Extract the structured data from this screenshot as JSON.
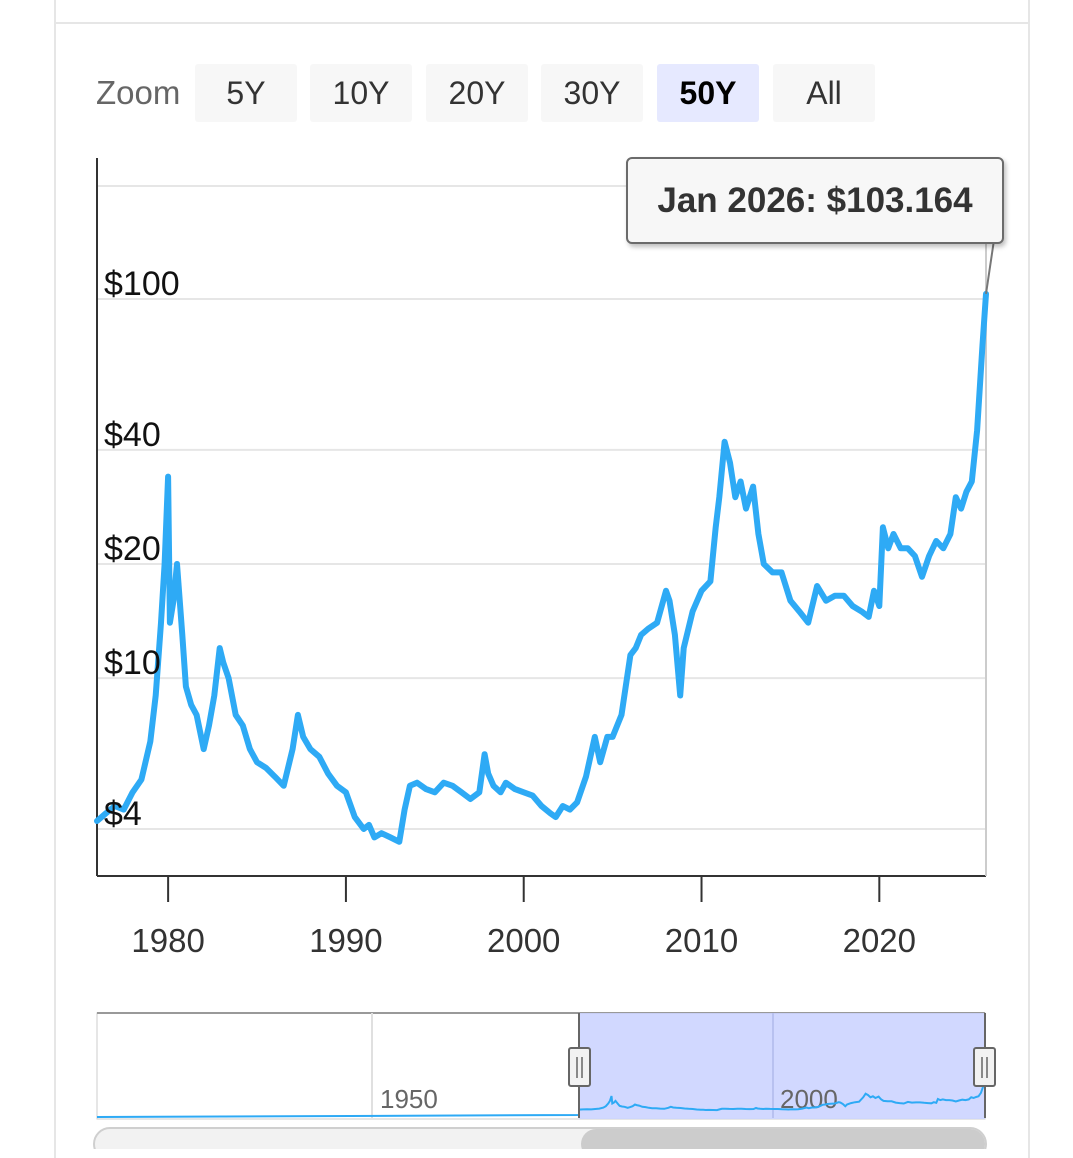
{
  "zoom": {
    "label": "Zoom",
    "buttons": [
      "5Y",
      "10Y",
      "20Y",
      "30Y",
      "50Y",
      "All"
    ],
    "active": "50Y"
  },
  "tooltip": {
    "text": "Jan 2026: $103.164"
  },
  "navigator": {
    "labels": [
      "1950",
      "2000"
    ]
  },
  "colors": {
    "series": "#2eaaf5",
    "selection": "#ccd4ff",
    "active_button": "#e6e9ff"
  },
  "chart_data": {
    "type": "line",
    "y_scale": "log",
    "ylim": [
      3.0,
      160
    ],
    "xlim": [
      1976.0,
      2026.0
    ],
    "y_ticks": [
      4,
      10,
      20,
      40,
      100
    ],
    "y_tick_labels": [
      "$4",
      "$10",
      "$20",
      "$40",
      "$100"
    ],
    "x_ticks": [
      1980,
      1990,
      2000,
      2010,
      2020
    ],
    "x_tick_labels": [
      "1980",
      "1990",
      "2000",
      "2010",
      "2020"
    ],
    "grid": true,
    "series": [
      {
        "x": [
          1976.0,
          1976.5,
          1977.0,
          1977.5,
          1978.0,
          1978.5,
          1979.0,
          1979.3,
          1979.6,
          1979.8,
          1980.0,
          1980.1,
          1980.3,
          1980.5,
          1980.8,
          1981.0,
          1981.3,
          1981.6,
          1982.0,
          1982.3,
          1982.6,
          1982.9,
          1983.1,
          1983.4,
          1983.8,
          1984.2,
          1984.6,
          1985.0,
          1985.5,
          1986.0,
          1986.5,
          1987.0,
          1987.3,
          1987.6,
          1988.0,
          1988.5,
          1989.0,
          1989.5,
          1990.0,
          1990.5,
          1991.0,
          1991.3,
          1991.6,
          1992.0,
          1992.5,
          1993.0,
          1993.3,
          1993.6,
          1994.0,
          1994.5,
          1995.0,
          1995.5,
          1996.0,
          1996.5,
          1997.0,
          1997.5,
          1997.8,
          1998.0,
          1998.3,
          1998.7,
          1999.0,
          1999.5,
          2000.0,
          2000.5,
          2001.0,
          2001.5,
          2001.8,
          2002.2,
          2002.6,
          2003.0,
          2003.5,
          2004.0,
          2004.3,
          2004.7,
          2005.0,
          2005.5,
          2006.0,
          2006.3,
          2006.6,
          2007.0,
          2007.5,
          2008.0,
          2008.2,
          2008.5,
          2008.8,
          2009.0,
          2009.5,
          2010.0,
          2010.5,
          2010.8,
          2011.0,
          2011.3,
          2011.6,
          2011.9,
          2012.2,
          2012.5,
          2012.9,
          2013.2,
          2013.5,
          2014.0,
          2014.5,
          2015.0,
          2015.5,
          2016.0,
          2016.5,
          2017.0,
          2017.5,
          2018.0,
          2018.5,
          2019.0,
          2019.4,
          2019.7,
          2020.0,
          2020.2,
          2020.5,
          2020.8,
          2021.2,
          2021.6,
          2022.0,
          2022.4,
          2022.8,
          2023.2,
          2023.6,
          2024.0,
          2024.3,
          2024.6,
          2024.9,
          2025.2,
          2025.5,
          2025.8,
          2026.0
        ],
        "y": [
          4.2,
          4.4,
          4.6,
          4.5,
          5.0,
          5.4,
          6.8,
          9.0,
          14.0,
          20.0,
          34.0,
          14.0,
          16.0,
          20.0,
          13.0,
          9.5,
          8.5,
          8.0,
          6.5,
          7.5,
          9.0,
          12.0,
          11.0,
          10.0,
          8.0,
          7.5,
          6.5,
          6.0,
          5.8,
          5.5,
          5.2,
          6.5,
          8.0,
          7.0,
          6.5,
          6.2,
          5.6,
          5.2,
          5.0,
          4.3,
          4.0,
          4.1,
          3.8,
          3.9,
          3.8,
          3.7,
          4.5,
          5.2,
          5.3,
          5.1,
          5.0,
          5.3,
          5.2,
          5.0,
          4.8,
          5.0,
          6.3,
          5.6,
          5.2,
          5.0,
          5.3,
          5.1,
          5.0,
          4.9,
          4.6,
          4.4,
          4.3,
          4.6,
          4.5,
          4.7,
          5.5,
          7.0,
          6.0,
          7.0,
          7.0,
          8.0,
          11.5,
          12.0,
          13.0,
          13.5,
          14.0,
          17.0,
          16.0,
          13.0,
          9.0,
          12.0,
          15.0,
          17.0,
          18.0,
          25.0,
          30.0,
          42.0,
          37.0,
          30.0,
          33.0,
          28.0,
          32.0,
          24.0,
          20.0,
          19.0,
          19.0,
          16.0,
          15.0,
          14.0,
          17.5,
          16.0,
          16.5,
          16.5,
          15.5,
          15.0,
          14.5,
          17.0,
          15.5,
          25.0,
          22.0,
          24.0,
          22.0,
          22.0,
          21.0,
          18.5,
          21.0,
          23.0,
          22.0,
          24.0,
          30.0,
          28.0,
          31.0,
          33.0,
          45.0,
          75.0,
          103.164
        ]
      }
    ]
  }
}
